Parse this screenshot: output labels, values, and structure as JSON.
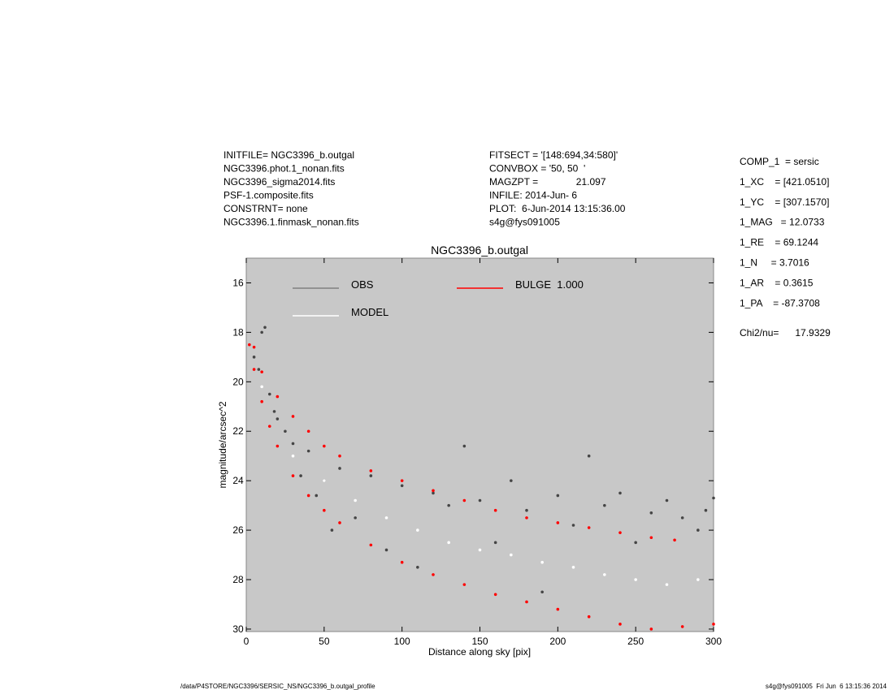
{
  "header": {
    "left": [
      "INITFILE= NGC3396_b.outgal",
      "NGC3396.phot.1_nonan.fits",
      "NGC3396_sigma2014.fits",
      "PSF-1.composite.fits",
      "CONSTRNT= none",
      "NGC3396.1.finmask_nonan.fits"
    ],
    "middle": [
      "FITSECT = '[148:694,34:580]'",
      "CONVBOX = '50, 50  '",
      "MAGZPT =              21.097",
      "INFILE: 2014-Jun- 6",
      "PLOT:  6-Jun-2014 13:15:36.00",
      "s4g@fys091005"
    ],
    "right": [
      "COMP_1  = sersic",
      "1_XC    = [421.0510]",
      "1_YC    = [307.1570]",
      "1_MAG   = 12.0733",
      "1_RE    = 69.1244",
      "1_N     = 3.7016",
      "1_AR    = 0.3615",
      "1_PA    = -87.3708"
    ],
    "chi": "Chi2/nu=      17.9329"
  },
  "footer": {
    "left": "/data/P4STORE/NGC3396/SERSIC_NS/NGC3396_b.outgal_profile",
    "right": "s4g@fys091005  Fri Jun  6 13:15:36 2014"
  },
  "chart_data": {
    "type": "scatter",
    "title": "NGC3396_b.outgal",
    "xlabel": "Distance along sky [pix]",
    "ylabel": "magnitude/arcsec^2",
    "xlim": [
      0,
      300
    ],
    "ylim": [
      30.1,
      15
    ],
    "xticks": [
      0,
      50,
      100,
      150,
      200,
      250,
      300
    ],
    "yticks": [
      16,
      18,
      20,
      22,
      24,
      26,
      28,
      30
    ],
    "background": "#c8c8c8",
    "series": [
      {
        "name": "OBS",
        "color": "#454545",
        "legend_color": "#808080",
        "x": [
          5,
          8,
          10,
          12,
          15,
          18,
          20,
          25,
          30,
          35,
          40,
          45,
          50,
          55,
          60,
          70,
          80,
          90,
          100,
          110,
          120,
          130,
          140,
          150,
          160,
          170,
          180,
          190,
          200,
          210,
          220,
          230,
          240,
          250,
          260,
          270,
          280,
          290,
          295,
          300
        ],
        "values": [
          19.0,
          19.5,
          18.0,
          17.8,
          20.5,
          21.2,
          21.5,
          22.0,
          22.5,
          23.8,
          22.8,
          24.6,
          24.0,
          26.0,
          23.5,
          25.5,
          23.8,
          26.8,
          24.2,
          27.5,
          24.5,
          25.0,
          22.6,
          24.8,
          26.5,
          24.0,
          25.2,
          28.5,
          24.6,
          25.8,
          23.0,
          25.0,
          24.5,
          26.5,
          25.3,
          24.8,
          25.5,
          26.0,
          25.2,
          24.7
        ]
      },
      {
        "name": "MODEL",
        "color": "#ffffff",
        "legend_color": "#ffffff",
        "x": [
          10,
          30,
          50,
          70,
          90,
          110,
          130,
          150,
          170,
          190,
          210,
          230,
          250,
          270,
          290
        ],
        "values": [
          20.2,
          23.0,
          24.0,
          24.8,
          25.5,
          26.0,
          26.5,
          26.8,
          27.0,
          27.3,
          27.5,
          27.8,
          28.0,
          28.2,
          28.0
        ]
      },
      {
        "name": "BULGE  1.000",
        "color": "#ff0000",
        "legend_color": "#ff0000",
        "x": [
          2,
          5,
          10,
          15,
          20,
          30,
          40,
          50,
          60,
          80,
          100,
          120,
          140,
          160,
          180,
          200,
          220,
          240,
          260,
          280,
          300,
          5,
          10,
          20,
          30,
          40,
          50,
          60,
          80,
          100,
          120,
          140,
          160,
          180,
          200,
          220,
          240,
          260,
          275
        ],
        "values": [
          18.5,
          19.5,
          20.8,
          21.8,
          22.6,
          23.8,
          24.6,
          25.2,
          25.7,
          26.6,
          27.3,
          27.8,
          28.2,
          28.6,
          28.9,
          29.2,
          29.5,
          29.8,
          30.0,
          29.9,
          29.8,
          18.6,
          19.6,
          20.6,
          21.4,
          22.0,
          22.6,
          23.0,
          23.6,
          24.0,
          24.4,
          24.8,
          25.2,
          25.5,
          25.7,
          25.9,
          26.1,
          26.3,
          26.4
        ]
      }
    ]
  }
}
